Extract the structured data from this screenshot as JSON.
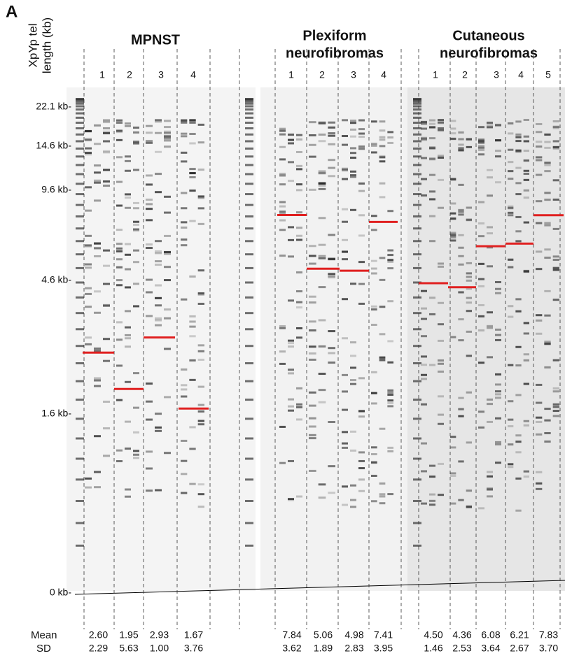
{
  "panel_label": "A",
  "y_axis_label": [
    "XpYp tel",
    "length (kb)"
  ],
  "ticks": [
    {
      "value": 22.1,
      "label": "22.1 kb-"
    },
    {
      "value": 14.6,
      "label": "14.6 kb-"
    },
    {
      "value": 9.6,
      "label": "9.6 kb-"
    },
    {
      "value": 4.6,
      "label": "4.6 kb-"
    },
    {
      "value": 1.6,
      "label": "1.6 kb-"
    },
    {
      "value": 0,
      "label": "0 kb-"
    }
  ],
  "row_labels": {
    "mean": "Mean",
    "sd": "SD"
  },
  "groups": [
    {
      "title": [
        "MPNST"
      ],
      "lanes": [
        "1",
        "2",
        "3",
        "4"
      ],
      "mean": {
        "values": [
          2.6,
          1.95,
          2.93,
          1.67
        ],
        "value_labels": [
          "2.60",
          "1.95",
          "2.93",
          "1.67"
        ]
      },
      "sd": [
        "2.29",
        "5.63",
        "1.00",
        "3.76"
      ]
    },
    {
      "title": [
        "Plexiform",
        "neurofibromas"
      ],
      "lanes": [
        "1",
        "2",
        "3",
        "4"
      ],
      "mean": {
        "values": [
          7.84,
          5.06,
          4.98,
          7.41
        ],
        "value_labels": [
          "7.84",
          "5.06",
          "4.98",
          "7.41"
        ]
      },
      "sd": [
        "3.62",
        "1.89",
        "2.83",
        "3.95"
      ]
    },
    {
      "title": [
        "Cutaneous",
        "neurofibromas"
      ],
      "lanes": [
        "1",
        "2",
        "3",
        "4",
        "5"
      ],
      "mean": {
        "values": [
          4.5,
          4.36,
          6.08,
          6.21,
          7.83
        ],
        "value_labels": [
          "4.50",
          "4.36",
          "6.08",
          "6.21",
          "7.83"
        ]
      },
      "sd": [
        "1.46",
        "2.53",
        "3.64",
        "2.67",
        "3.70"
      ]
    }
  ]
}
